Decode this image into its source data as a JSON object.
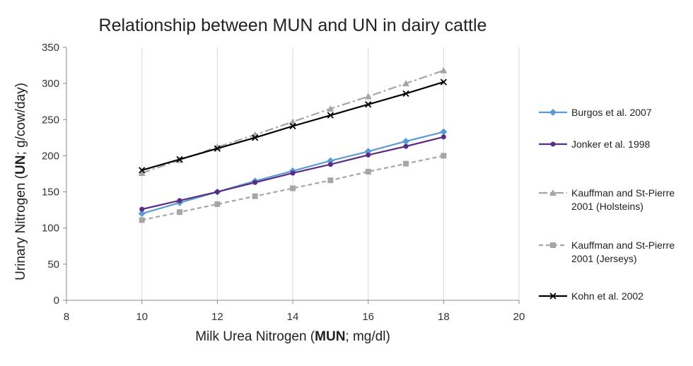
{
  "chart_data": {
    "type": "line",
    "title": "Relationship between MUN and UN in dairy cattle",
    "xlabel": {
      "pre": "Milk Urea Nitrogen (",
      "bold": "MUN",
      "post": "; mg/dl)"
    },
    "ylabel": {
      "pre": "Urinary Nitrogen (",
      "bold": "UN",
      "post": "; g/cow/day)"
    },
    "xlim": [
      8,
      20
    ],
    "ylim": [
      0,
      350
    ],
    "xticks": [
      8,
      10,
      12,
      14,
      16,
      18,
      20
    ],
    "yticks": [
      0,
      50,
      100,
      150,
      200,
      250,
      300,
      350
    ],
    "grid": "vertical",
    "legend_position": "right",
    "x": [
      10,
      11,
      12,
      13,
      14,
      15,
      16,
      17,
      18
    ],
    "series": [
      {
        "name": "Burgos et al. 2007",
        "color": "#5b9bd5",
        "marker": "diamond",
        "dash": "solid",
        "values": [
          120,
          135,
          150,
          165,
          179,
          193,
          206,
          220,
          233
        ]
      },
      {
        "name": "Jonker et al. 1998",
        "color": "#5b2c83",
        "marker": "circle",
        "dash": "solid",
        "values": [
          126,
          138,
          150,
          163,
          176,
          188,
          201,
          213,
          226
        ]
      },
      {
        "name": "Kauffman and St-Pierre 2001 (Holsteins)",
        "color": "#a6a6a6",
        "marker": "triangle",
        "dash": "dashdot",
        "values": [
          176,
          194,
          212,
          229,
          247,
          265,
          282,
          300,
          318
        ]
      },
      {
        "name": "Kauffman and St-Pierre 2001 (Jerseys)",
        "color": "#a6a6a6",
        "marker": "square",
        "dash": "dash",
        "values": [
          111,
          122,
          133,
          144,
          155,
          166,
          178,
          189,
          200
        ]
      },
      {
        "name": "Kohn et al. 2002",
        "color": "#000000",
        "marker": "x",
        "dash": "solid",
        "values": [
          180,
          195,
          210,
          225,
          241,
          256,
          271,
          286,
          302
        ]
      }
    ]
  }
}
